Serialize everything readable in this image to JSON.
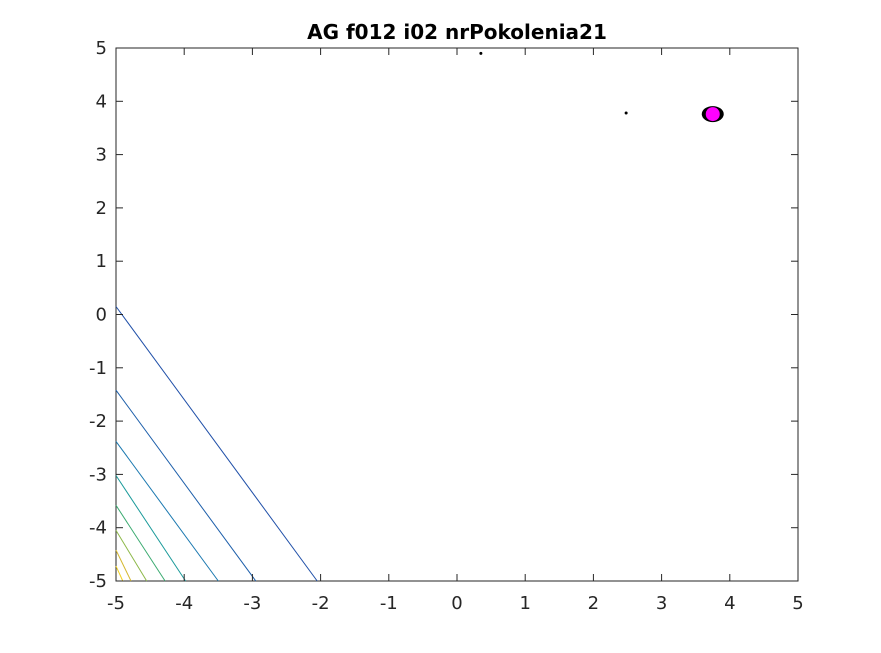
{
  "chart_data": {
    "type": "contour",
    "title": "AG f012 i02 nrPokolenia21",
    "xlabel": "",
    "ylabel": "",
    "xlim": [
      -5,
      5
    ],
    "ylim": [
      -5,
      5
    ],
    "x_ticks": [
      -5,
      -4,
      -3,
      -2,
      -1,
      0,
      1,
      2,
      3,
      4,
      5
    ],
    "y_ticks": [
      -5,
      -4,
      -3,
      -2,
      -1,
      0,
      1,
      2,
      3,
      4,
      5
    ],
    "x_tick_labels": [
      "-5",
      "-4",
      "-3",
      "-2",
      "-1",
      "0",
      "1",
      "2",
      "3",
      "4",
      "5"
    ],
    "y_tick_labels": [
      "-5",
      "-4",
      "-3",
      "-2",
      "-1",
      "0",
      "1",
      "2",
      "3",
      "4",
      "5"
    ],
    "grid": false,
    "contour_lines": [
      {
        "color": "#1f4fa8",
        "points": [
          [
            -5,
            0.15
          ],
          [
            -2.05,
            -5
          ]
        ]
      },
      {
        "color": "#1c5eaa",
        "points": [
          [
            -5,
            -1.42
          ],
          [
            -2.95,
            -5
          ]
        ]
      },
      {
        "color": "#1a78b0",
        "points": [
          [
            -5,
            -2.38
          ],
          [
            -3.5,
            -5
          ]
        ]
      },
      {
        "color": "#1a9a9a",
        "points": [
          [
            -5,
            -3.02
          ],
          [
            -3.98,
            -5
          ]
        ]
      },
      {
        "color": "#3aaa70",
        "points": [
          [
            -5,
            -3.58
          ],
          [
            -4.28,
            -5
          ]
        ]
      },
      {
        "color": "#8cb848",
        "points": [
          [
            -5,
            -4.05
          ],
          [
            -4.55,
            -5
          ]
        ]
      },
      {
        "color": "#d4b832",
        "points": [
          [
            -5,
            -4.42
          ],
          [
            -4.78,
            -5
          ]
        ]
      },
      {
        "color": "#f0d020",
        "points": [
          [
            -5,
            -4.72
          ],
          [
            -4.9,
            -5
          ]
        ]
      }
    ],
    "population_points": [
      [
        3.7,
        3.78
      ],
      [
        3.72,
        3.82
      ],
      [
        3.75,
        3.76
      ],
      [
        3.78,
        3.8
      ],
      [
        3.8,
        3.74
      ],
      [
        3.73,
        3.72
      ],
      [
        3.77,
        3.85
      ],
      [
        3.82,
        3.78
      ],
      [
        3.68,
        3.76
      ],
      [
        3.76,
        3.7
      ],
      [
        2.48,
        3.78
      ],
      [
        0.35,
        4.9
      ]
    ],
    "best_point": [
      3.75,
      3.76
    ],
    "population_color": "#000000",
    "best_color": "#ff00ff"
  }
}
